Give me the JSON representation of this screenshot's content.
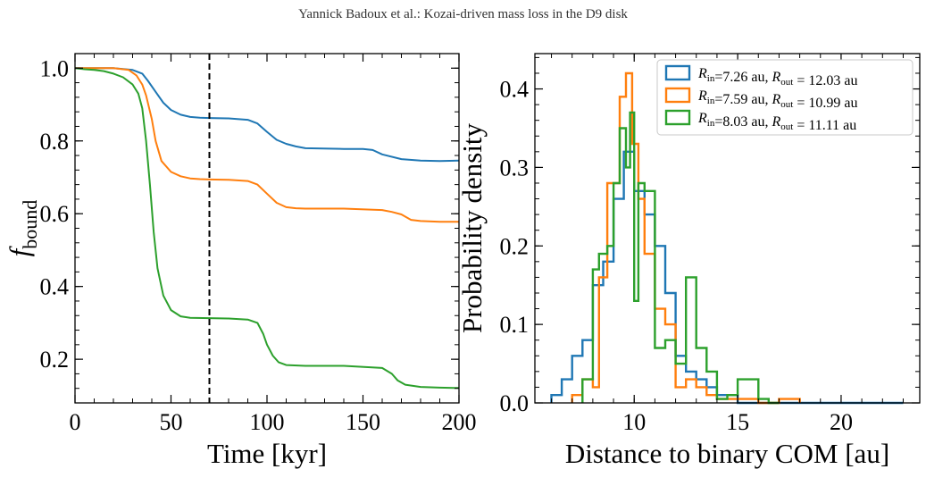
{
  "header": "Yannick Badoux et al.: Kozai-driven mass loss in the D9 disk",
  "colors": {
    "blue": "#1f77b4",
    "orange": "#ff7f0e",
    "green": "#2ca02c"
  },
  "chart_data": [
    {
      "type": "line",
      "xlabel": "Time [kyr]",
      "ylabel": "f_bound",
      "ylabel_sub": "bound",
      "xlim": [
        0,
        200
      ],
      "ylim": [
        0.08,
        1.04
      ],
      "xticks": [
        0,
        50,
        100,
        150,
        200
      ],
      "xtick_labels": [
        "0",
        "50",
        "100",
        "150",
        "200"
      ],
      "yticks": [
        0.2,
        0.4,
        0.6,
        0.8,
        1.0
      ],
      "ytick_labels": [
        "0.2",
        "0.4",
        "0.6",
        "0.8",
        "1.0"
      ],
      "vline": {
        "x": 70,
        "style": "dashed",
        "color": "#000000"
      },
      "series": [
        {
          "color": "#1f77b4",
          "x": [
            0,
            10,
            20,
            30,
            35,
            38,
            42,
            46,
            50,
            55,
            60,
            65,
            70,
            80,
            90,
            95,
            100,
            105,
            110,
            115,
            120,
            140,
            150,
            155,
            160,
            170,
            180,
            190,
            200
          ],
          "y": [
            1.0,
            1.0,
            1.0,
            0.995,
            0.985,
            0.965,
            0.935,
            0.905,
            0.885,
            0.872,
            0.866,
            0.864,
            0.863,
            0.862,
            0.858,
            0.848,
            0.825,
            0.803,
            0.792,
            0.785,
            0.78,
            0.778,
            0.778,
            0.775,
            0.763,
            0.75,
            0.746,
            0.745,
            0.746
          ]
        },
        {
          "color": "#ff7f0e",
          "x": [
            0,
            10,
            20,
            28,
            32,
            35,
            37,
            40,
            42,
            45,
            50,
            55,
            60,
            65,
            70,
            80,
            90,
            95,
            100,
            105,
            110,
            115,
            120,
            140,
            160,
            165,
            170,
            175,
            180,
            190,
            200
          ],
          "y": [
            1.0,
            1.0,
            1.0,
            0.995,
            0.98,
            0.955,
            0.925,
            0.86,
            0.8,
            0.745,
            0.715,
            0.703,
            0.697,
            0.695,
            0.694,
            0.693,
            0.69,
            0.68,
            0.655,
            0.63,
            0.618,
            0.615,
            0.614,
            0.614,
            0.61,
            0.605,
            0.598,
            0.583,
            0.58,
            0.578,
            0.578
          ]
        },
        {
          "color": "#2ca02c",
          "x": [
            0,
            5,
            10,
            15,
            20,
            25,
            30,
            33,
            35,
            37,
            39,
            41,
            43,
            46,
            50,
            55,
            60,
            70,
            80,
            90,
            95,
            98,
            100,
            103,
            106,
            110,
            120,
            140,
            160,
            165,
            168,
            172,
            180,
            190,
            200
          ],
          "y": [
            1.0,
            0.997,
            0.995,
            0.992,
            0.985,
            0.975,
            0.955,
            0.93,
            0.89,
            0.8,
            0.68,
            0.55,
            0.45,
            0.375,
            0.335,
            0.318,
            0.314,
            0.313,
            0.312,
            0.309,
            0.3,
            0.27,
            0.24,
            0.21,
            0.192,
            0.184,
            0.182,
            0.182,
            0.176,
            0.16,
            0.142,
            0.13,
            0.124,
            0.122,
            0.121
          ]
        }
      ]
    },
    {
      "type": "histogram",
      "xlabel": "Distance to binary COM [au]",
      "ylabel": "Probability density",
      "xlim": [
        5.2,
        23.8
      ],
      "ylim": [
        0,
        0.445
      ],
      "xticks": [
        10,
        15,
        20
      ],
      "xtick_labels": [
        "10",
        "15",
        "20"
      ],
      "yticks": [
        0.0,
        0.1,
        0.2,
        0.3,
        0.4
      ],
      "ytick_labels": [
        "0.0",
        "0.1",
        "0.2",
        "0.3",
        "0.4"
      ],
      "legend_position": "top-right",
      "series": [
        {
          "name": "R_in=7.26 au, R_out = 12.03 au",
          "r_in": "7.26 au",
          "r_out": "12.03 au",
          "color": "#1f77b4",
          "edges": [
            6.0,
            6.5,
            7.0,
            7.5,
            8.0,
            8.5,
            9.0,
            9.5,
            10.0,
            10.5,
            11.0,
            11.5,
            12.0,
            12.5,
            13.0,
            13.5,
            14.0,
            14.5,
            15.0,
            23.0
          ],
          "values": [
            0.01,
            0.03,
            0.06,
            0.08,
            0.15,
            0.18,
            0.26,
            0.32,
            0.27,
            0.24,
            0.2,
            0.14,
            0.06,
            0.04,
            0.03,
            0.02,
            0.01,
            0.01,
            0.0
          ]
        },
        {
          "name": "R_in=7.59 au, R_out = 10.99 au",
          "r_in": "7.59 au",
          "r_out": "10.99 au",
          "color": "#ff7f0e",
          "edges": [
            7.0,
            7.5,
            8.0,
            8.3,
            8.7,
            9.0,
            9.3,
            9.6,
            9.9,
            10.2,
            10.5,
            11.0,
            11.5,
            12.0,
            12.5,
            13.0,
            13.5,
            14.0,
            15.0,
            16.0,
            17.0,
            17.5,
            18.0
          ],
          "values": [
            0.01,
            0.03,
            0.02,
            0.16,
            0.28,
            0.28,
            0.39,
            0.42,
            0.33,
            0.26,
            0.19,
            0.12,
            0.1,
            0.02,
            0.03,
            0.02,
            0.01,
            0.005,
            0.005,
            0.0,
            0.005,
            0.005
          ]
        },
        {
          "name": "R_in=8.03 au, R_out = 11.11 au",
          "r_in": "8.03 au",
          "r_out": "11.11 au",
          "color": "#2ca02c",
          "edges": [
            7.5,
            8.0,
            8.3,
            8.7,
            9.0,
            9.3,
            9.6,
            9.8,
            10.0,
            10.2,
            10.5,
            11.0,
            11.5,
            12.0,
            12.5,
            13.0,
            13.5,
            14.0,
            14.5,
            15.0,
            15.5,
            16.0,
            16.5,
            17.0
          ],
          "values": [
            0.03,
            0.17,
            0.19,
            0.2,
            0.28,
            0.35,
            0.3,
            0.37,
            0.13,
            0.28,
            0.27,
            0.07,
            0.08,
            0.05,
            0.16,
            0.07,
            0.04,
            0.005,
            0.01,
            0.03,
            0.03,
            0.005,
            0.0
          ]
        }
      ]
    }
  ]
}
